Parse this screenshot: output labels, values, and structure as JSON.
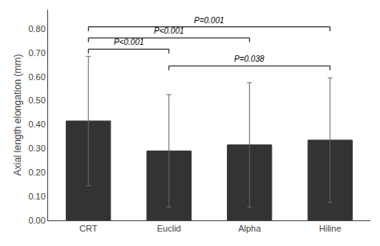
{
  "chart_data": {
    "type": "bar",
    "categories": [
      "CRT",
      "Euclid",
      "Alpha",
      "Hiline"
    ],
    "values": [
      0.415,
      0.29,
      0.315,
      0.335
    ],
    "yerr_upper": [
      0.27,
      0.235,
      0.26,
      0.26
    ],
    "yerr_lower": [
      0.27,
      0.235,
      0.26,
      0.26
    ],
    "color": "#333333",
    "ylabel": "Axial length elongation (mm)",
    "ylim": [
      0.0,
      0.88
    ],
    "yticks": [
      {
        "value": 0.0,
        "label": "0.00"
      },
      {
        "value": 0.1,
        "label": "0.10"
      },
      {
        "value": 0.2,
        "label": "0.20"
      },
      {
        "value": 0.3,
        "label": "0.30"
      },
      {
        "value": 0.4,
        "label": "0.40"
      },
      {
        "value": 0.5,
        "label": "0.50"
      },
      {
        "value": 0.6,
        "label": "0.60"
      },
      {
        "value": 0.7,
        "label": "0.70"
      },
      {
        "value": 0.8,
        "label": "0.80"
      }
    ],
    "significance_brackets": [
      {
        "from": "CRT",
        "to": "Euclid",
        "y": 0.715,
        "label": "P<0.001"
      },
      {
        "from": "CRT",
        "to": "Alpha",
        "y": 0.762,
        "label": "P<0.001"
      },
      {
        "from": "CRT",
        "to": "Hiline",
        "y": 0.808,
        "label": "P=0.001"
      },
      {
        "from": "Euclid",
        "to": "Hiline",
        "y": 0.645,
        "label": "P=0.038"
      }
    ],
    "grid": false
  }
}
